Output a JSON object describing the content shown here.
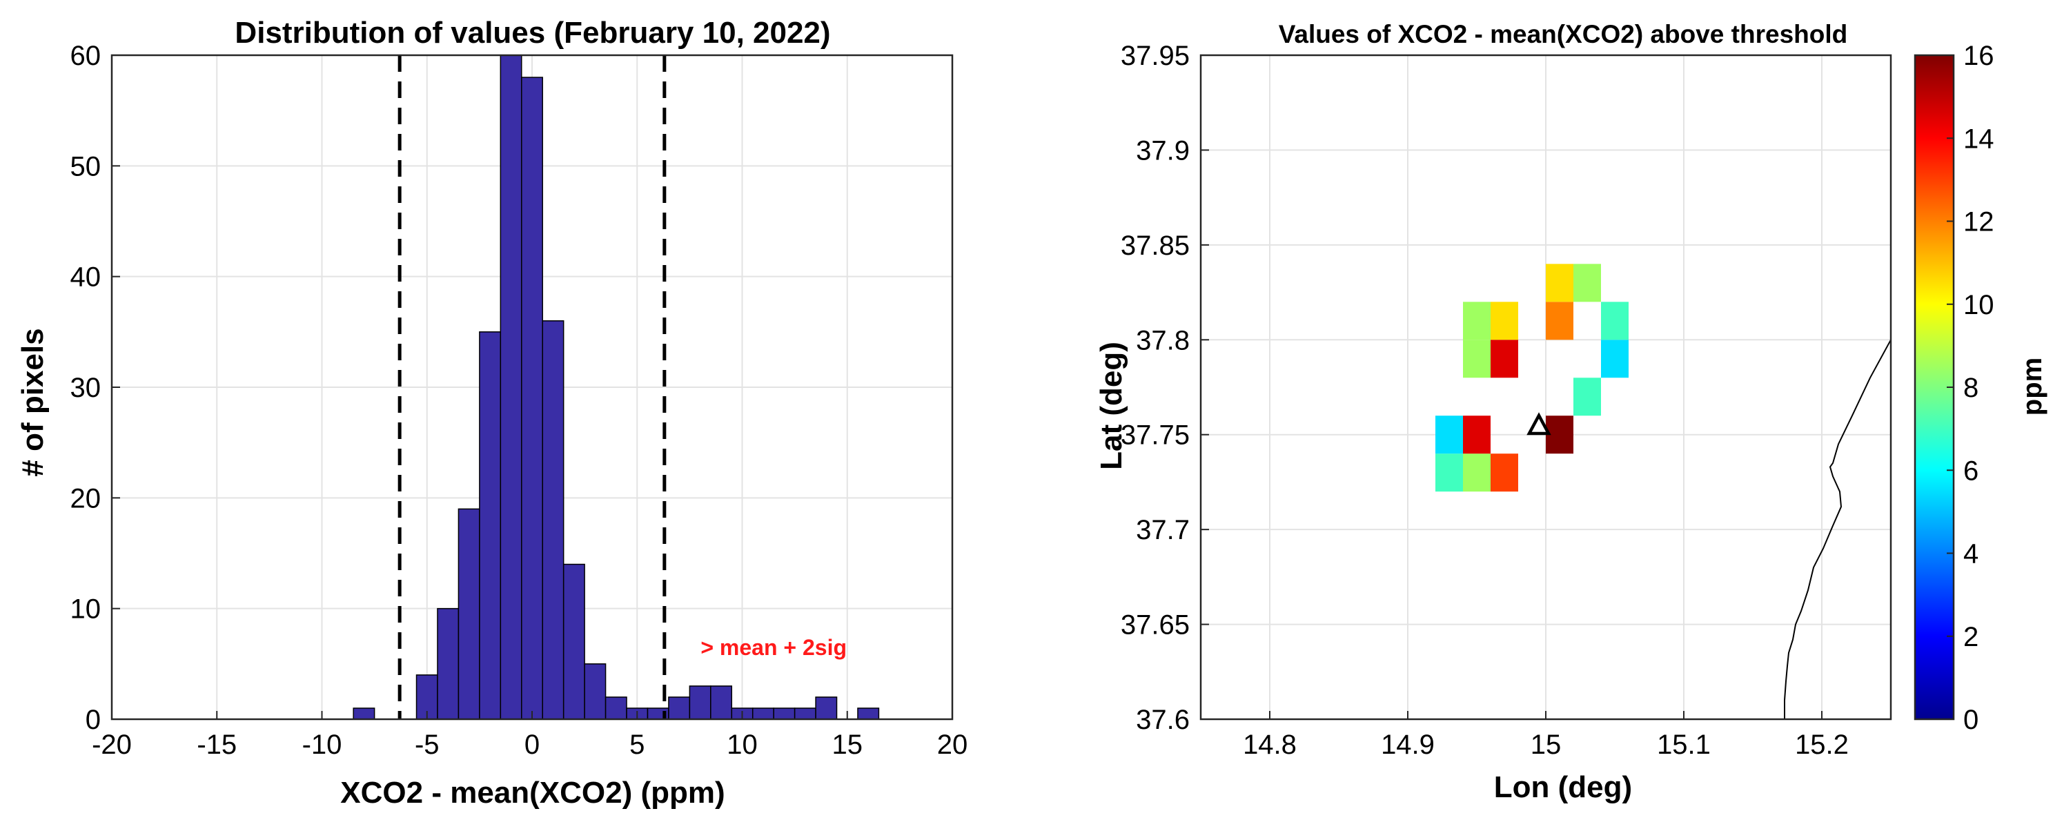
{
  "chart_data": [
    {
      "type": "bar",
      "title": "Distribution of values (February 10, 2022)",
      "xlabel": "XCO2 - mean(XCO2) (ppm)",
      "ylabel": "# of pixels",
      "xlim": [
        -20,
        20
      ],
      "ylim": [
        0,
        60
      ],
      "xticks": [
        -20,
        -15,
        -10,
        -5,
        0,
        5,
        10,
        15,
        20
      ],
      "yticks": [
        0,
        10,
        20,
        30,
        40,
        50,
        60
      ],
      "grid": true,
      "bar_color": "#3a2ea6",
      "bin_width": 1,
      "bins": [
        {
          "x": -8,
          "count": 1
        },
        {
          "x": -5,
          "count": 4
        },
        {
          "x": -4,
          "count": 10
        },
        {
          "x": -3,
          "count": 19
        },
        {
          "x": -2,
          "count": 35
        },
        {
          "x": -1,
          "count": 60
        },
        {
          "x": 0,
          "count": 58
        },
        {
          "x": 1,
          "count": 36
        },
        {
          "x": 2,
          "count": 14
        },
        {
          "x": 3,
          "count": 5
        },
        {
          "x": 4,
          "count": 2
        },
        {
          "x": 5,
          "count": 1
        },
        {
          "x": 6,
          "count": 1
        },
        {
          "x": 7,
          "count": 2
        },
        {
          "x": 8,
          "count": 3
        },
        {
          "x": 9,
          "count": 3
        },
        {
          "x": 10,
          "count": 1
        },
        {
          "x": 11,
          "count": 1
        },
        {
          "x": 12,
          "count": 1
        },
        {
          "x": 13,
          "count": 1
        },
        {
          "x": 14,
          "count": 2
        },
        {
          "x": 16,
          "count": 1
        }
      ],
      "threshold_lines": [
        -6.3,
        6.3
      ],
      "annotation": {
        "text": "> mean + 2sig",
        "x": 11.5,
        "y": 6.5,
        "color": "#ff1a1a"
      }
    },
    {
      "type": "heatmap",
      "title": "Values of XCO2 - mean(XCO2) above threshold",
      "xlabel": "Lon (deg)",
      "ylabel": "Lat (deg)",
      "xlim": [
        14.75,
        15.25
      ],
      "ylim": [
        37.6,
        37.95
      ],
      "xticks": [
        14.8,
        14.9,
        15,
        15.1,
        15.2
      ],
      "xtick_labels": [
        "14.8",
        "14.9",
        "15",
        "15.1",
        "15.2"
      ],
      "yticks": [
        37.6,
        37.65,
        37.7,
        37.75,
        37.8,
        37.85,
        37.9,
        37.95
      ],
      "ytick_labels": [
        "37.6",
        "37.65",
        "37.7",
        "37.75",
        "37.8",
        "37.85",
        "37.9",
        "37.95"
      ],
      "grid": true,
      "cell_size": 0.02,
      "colorbar": {
        "label": "ppm",
        "range": [
          0,
          16
        ],
        "ticks": [
          0,
          2,
          4,
          6,
          8,
          10,
          12,
          14,
          16
        ],
        "colormap": "jet"
      },
      "cells": [
        {
          "lon": 14.93,
          "lat": 37.73,
          "value": 7
        },
        {
          "lon": 14.95,
          "lat": 37.73,
          "value": 8.5
        },
        {
          "lon": 14.97,
          "lat": 37.73,
          "value": 13
        },
        {
          "lon": 14.93,
          "lat": 37.75,
          "value": 5.5
        },
        {
          "lon": 14.95,
          "lat": 37.75,
          "value": 14.5
        },
        {
          "lon": 15.01,
          "lat": 37.75,
          "value": 16
        },
        {
          "lon": 15.03,
          "lat": 37.77,
          "value": 7
        },
        {
          "lon": 14.95,
          "lat": 37.79,
          "value": 8.5
        },
        {
          "lon": 14.97,
          "lat": 37.79,
          "value": 14.5
        },
        {
          "lon": 15.05,
          "lat": 37.79,
          "value": 5.5
        },
        {
          "lon": 14.95,
          "lat": 37.81,
          "value": 8.5
        },
        {
          "lon": 14.97,
          "lat": 37.81,
          "value": 10.5
        },
        {
          "lon": 15.01,
          "lat": 37.81,
          "value": 12
        },
        {
          "lon": 15.05,
          "lat": 37.81,
          "value": 7
        },
        {
          "lon": 15.01,
          "lat": 37.83,
          "value": 10.5
        },
        {
          "lon": 15.03,
          "lat": 37.83,
          "value": 8.5
        }
      ],
      "marker": {
        "lon": 14.995,
        "lat": 37.755,
        "shape": "triangle"
      },
      "coastline": [
        [
          15.25,
          37.8
        ],
        [
          15.235,
          37.78
        ],
        [
          15.222,
          37.76
        ],
        [
          15.212,
          37.745
        ],
        [
          15.208,
          37.735
        ],
        [
          15.206,
          37.733
        ],
        [
          15.208,
          37.728
        ],
        [
          15.213,
          37.72
        ],
        [
          15.214,
          37.712
        ],
        [
          15.208,
          37.702
        ],
        [
          15.201,
          37.69
        ],
        [
          15.194,
          37.68
        ],
        [
          15.19,
          37.668
        ],
        [
          15.185,
          37.657
        ],
        [
          15.181,
          37.65
        ],
        [
          15.179,
          37.642
        ],
        [
          15.176,
          37.635
        ],
        [
          15.175,
          37.628
        ],
        [
          15.174,
          37.62
        ],
        [
          15.173,
          37.61
        ],
        [
          15.173,
          37.6
        ]
      ]
    }
  ]
}
